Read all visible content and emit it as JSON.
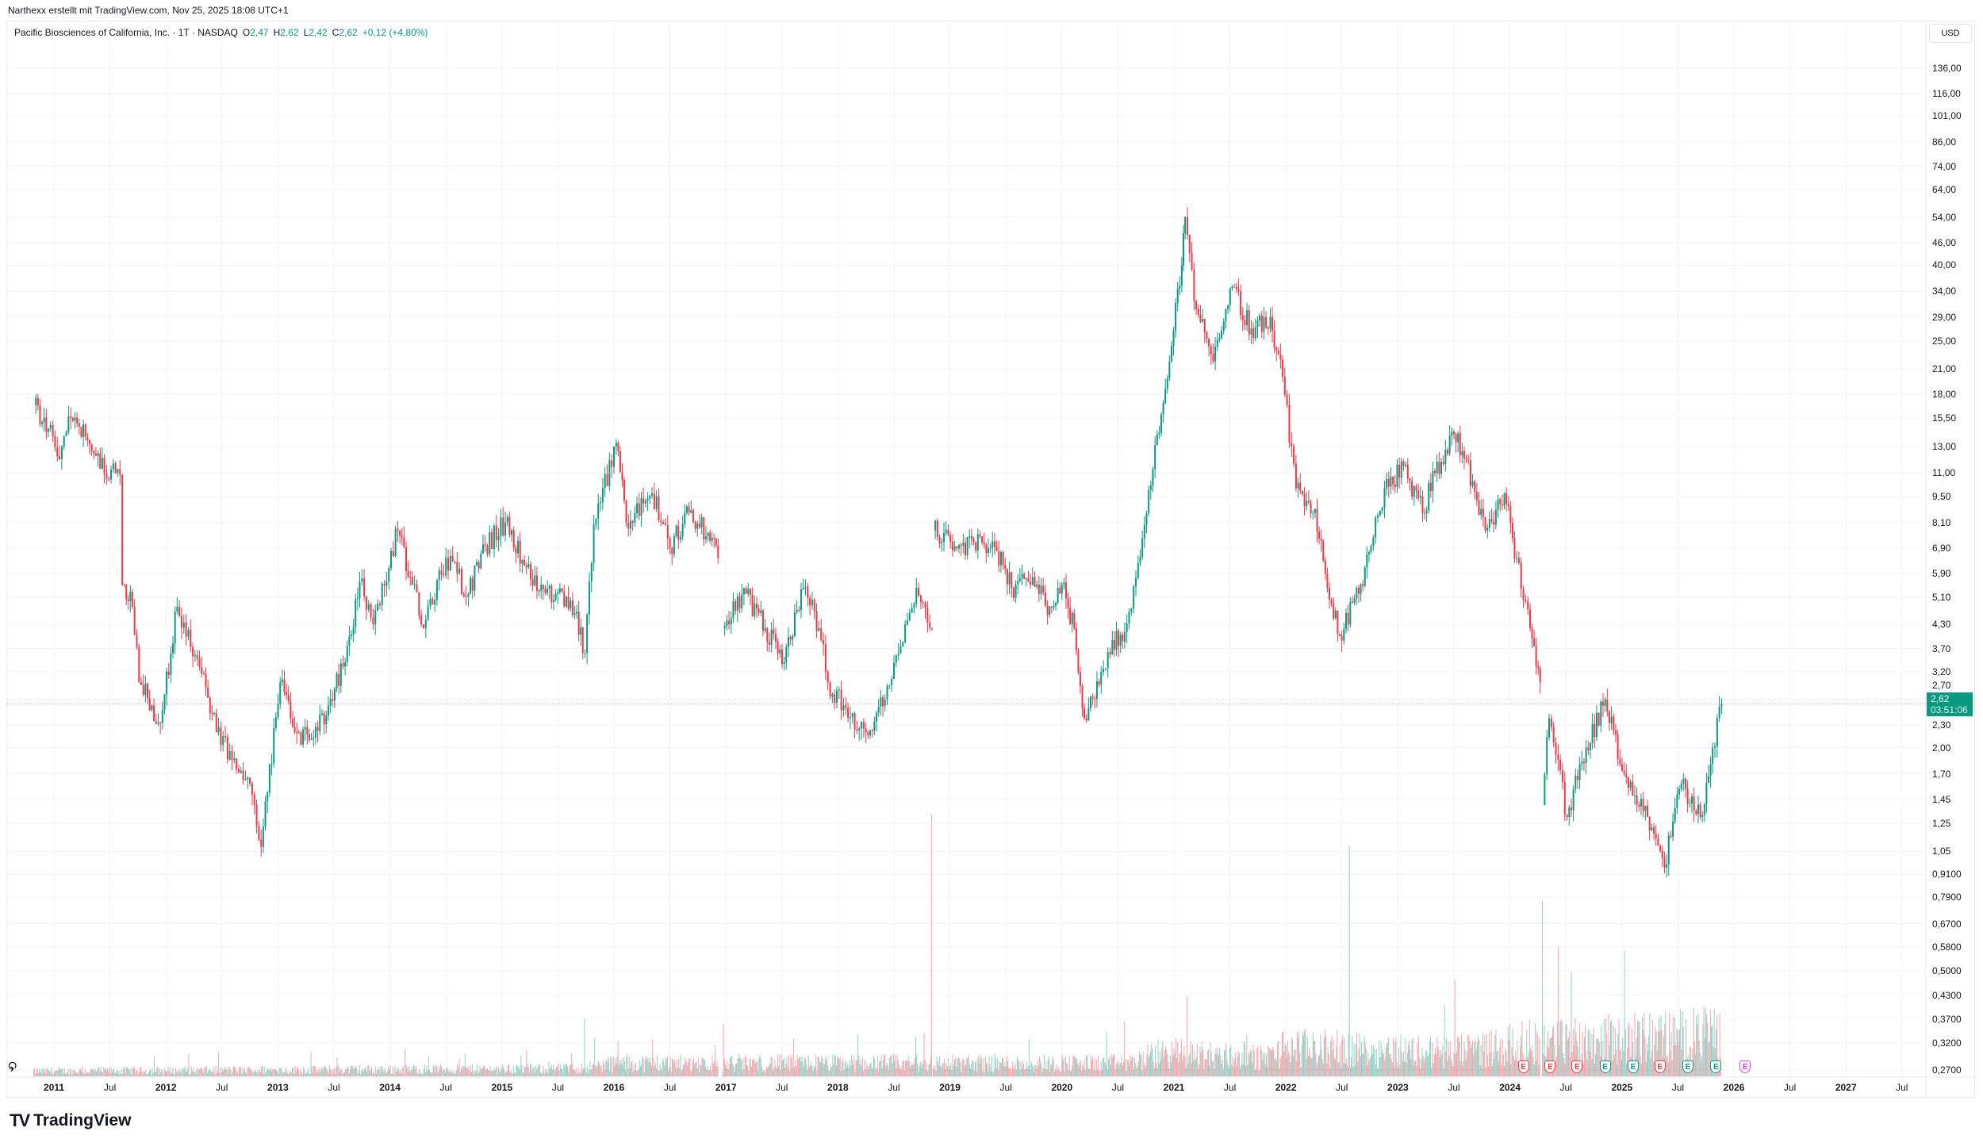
{
  "credit": "Narthexx erstellt mit TradingView.com, Nov 25, 2025 18:08 UTC+1",
  "legend": {
    "symbol": "Pacific Biosciences of California, Inc. · 1T · NASDAQ",
    "o_label": "O",
    "o": "2,47",
    "h_label": "H",
    "h": "2,62",
    "l_label": "L",
    "l": "2,42",
    "c_label": "C",
    "c": "2,62",
    "change": "+0,12 (+4,80%)"
  },
  "currency_button": "USD",
  "last_price": {
    "value": "2,62",
    "countdown": "03:51:06",
    "price": 2.62
  },
  "logo_text": "TradingView",
  "colors": {
    "up": "#089981",
    "down": "#f23645",
    "price_line": "#f23645",
    "forecast_earnings": "#e040fb"
  },
  "earnings_markers": [
    {
      "t": 2024.12,
      "label": "E",
      "color": "#f23645"
    },
    {
      "t": 2024.36,
      "label": "E",
      "color": "#f23645"
    },
    {
      "t": 2024.6,
      "label": "E",
      "color": "#f23645"
    },
    {
      "t": 2024.85,
      "label": "E",
      "color": "#089981"
    },
    {
      "t": 2025.1,
      "label": "E",
      "color": "#089981"
    },
    {
      "t": 2025.34,
      "label": "E",
      "color": "#f23645"
    },
    {
      "t": 2025.59,
      "label": "E",
      "color": "#089981"
    },
    {
      "t": 2025.84,
      "label": "E",
      "color": "#089981"
    },
    {
      "t": 2026.1,
      "label": "E",
      "color": "#e040fb"
    }
  ],
  "chart_data": {
    "type": "candlestick",
    "title": "Pacific Biosciences of California, Inc. · 1T · NASDAQ",
    "y_scale": "log",
    "ylim": [
      0.27,
      136
    ],
    "xlim": [
      2010.75,
      2027.75
    ],
    "y_ticks": [
      "136,00",
      "116,00",
      "101,00",
      "86,00",
      "74,00",
      "64,00",
      "54,00",
      "46,00",
      "40,00",
      "34,00",
      "29,00",
      "25,00",
      "21,00",
      "18,00",
      "15,50",
      "13,00",
      "11,00",
      "9,50",
      "8,10",
      "6,90",
      "5,90",
      "5,10",
      "4,30",
      "3,70",
      "3,20",
      "2,70",
      "2,30",
      "2,00",
      "1,70",
      "1,45",
      "1,25",
      "1,05",
      "0,9100",
      "0,7900",
      "0,6700",
      "0,5800",
      "0,5000",
      "0,4300",
      "0,3700",
      "0,3200",
      "0,2700"
    ],
    "x_ticks": [
      {
        "t": 2011,
        "label": "2011",
        "year": true
      },
      {
        "t": 2011.5,
        "label": "Jul"
      },
      {
        "t": 2012,
        "label": "2012",
        "year": true
      },
      {
        "t": 2012.5,
        "label": "Jul"
      },
      {
        "t": 2013,
        "label": "2013",
        "year": true
      },
      {
        "t": 2013.5,
        "label": "Jul"
      },
      {
        "t": 2014,
        "label": "2014",
        "year": true
      },
      {
        "t": 2014.5,
        "label": "Jul"
      },
      {
        "t": 2015,
        "label": "2015",
        "year": true
      },
      {
        "t": 2015.5,
        "label": "Jul"
      },
      {
        "t": 2016,
        "label": "2016",
        "year": true
      },
      {
        "t": 2016.5,
        "label": "Jul"
      },
      {
        "t": 2017,
        "label": "2017",
        "year": true
      },
      {
        "t": 2017.5,
        "label": "Jul"
      },
      {
        "t": 2018,
        "label": "2018",
        "year": true
      },
      {
        "t": 2018.5,
        "label": "Jul"
      },
      {
        "t": 2019,
        "label": "2019",
        "year": true
      },
      {
        "t": 2019.5,
        "label": "Jul"
      },
      {
        "t": 2020,
        "label": "2020",
        "year": true
      },
      {
        "t": 2020.5,
        "label": "Jul"
      },
      {
        "t": 2021,
        "label": "2021",
        "year": true
      },
      {
        "t": 2021.5,
        "label": "Jul"
      },
      {
        "t": 2022,
        "label": "2022",
        "year": true
      },
      {
        "t": 2022.5,
        "label": "Jul"
      },
      {
        "t": 2023,
        "label": "2023",
        "year": true
      },
      {
        "t": 2023.5,
        "label": "Jul"
      },
      {
        "t": 2024,
        "label": "2024",
        "year": true
      },
      {
        "t": 2024.5,
        "label": "Jul"
      },
      {
        "t": 2025,
        "label": "2025",
        "year": true
      },
      {
        "t": 2025.5,
        "label": "Jul"
      },
      {
        "t": 2026,
        "label": "2026",
        "year": true
      },
      {
        "t": 2026.5,
        "label": "Jul"
      },
      {
        "t": 2027,
        "label": "2027",
        "year": true
      },
      {
        "t": 2027.5,
        "label": "Jul"
      }
    ],
    "price_segments": [
      [
        [
          2010.82,
          16.8
        ],
        [
          2010.95,
          14.5
        ],
        [
          2011.05,
          12.0
        ],
        [
          2011.15,
          15.5
        ],
        [
          2011.3,
          13.5
        ],
        [
          2011.45,
          11.0
        ],
        [
          2011.59,
          10.9
        ],
        [
          2011.61,
          5.5
        ],
        [
          2011.7,
          4.8
        ],
        [
          2011.76,
          3.0
        ],
        [
          2011.95,
          2.33
        ],
        [
          2012.1,
          4.8
        ],
        [
          2012.3,
          3.3
        ],
        [
          2012.45,
          2.2
        ],
        [
          2012.61,
          1.87
        ],
        [
          2012.75,
          1.6
        ],
        [
          2012.85,
          1.08
        ],
        [
          2013.02,
          3.0
        ],
        [
          2013.15,
          2.2
        ],
        [
          2013.28,
          2.1
        ],
        [
          2013.45,
          2.6
        ],
        [
          2013.6,
          3.4
        ],
        [
          2013.73,
          5.6
        ],
        [
          2013.85,
          4.3
        ],
        [
          2014.07,
          7.7
        ],
        [
          2014.2,
          5.5
        ],
        [
          2014.3,
          4.2
        ],
        [
          2014.5,
          6.5
        ],
        [
          2014.7,
          5.2
        ],
        [
          2014.85,
          7.0
        ],
        [
          2015.03,
          8.1
        ],
        [
          2015.2,
          6.2
        ],
        [
          2015.35,
          5.5
        ],
        [
          2015.48,
          5.2
        ],
        [
          2015.65,
          4.6
        ],
        [
          2015.74,
          3.6
        ],
        [
          2015.82,
          8.0
        ],
        [
          2016.02,
          13.3
        ],
        [
          2016.11,
          8.1
        ],
        [
          2016.34,
          9.7
        ],
        [
          2016.5,
          6.9
        ],
        [
          2016.67,
          8.6
        ],
        [
          2016.84,
          7.6
        ],
        [
          2016.93,
          6.5
        ]
      ],
      [
        [
          2016.97,
          4.2
        ],
        [
          2017.18,
          5.2
        ],
        [
          2017.35,
          4.2
        ],
        [
          2017.52,
          3.4
        ],
        [
          2017.69,
          5.4
        ],
        [
          2017.83,
          4.2
        ],
        [
          2017.91,
          3.0
        ],
        [
          2018.05,
          2.6
        ],
        [
          2018.25,
          2.2
        ],
        [
          2018.42,
          2.7
        ],
        [
          2018.6,
          4.3
        ],
        [
          2018.7,
          5.4
        ],
        [
          2018.84,
          4.2
        ]
      ],
      [
        [
          2018.85,
          7.7
        ],
        [
          2019.1,
          7.0
        ],
        [
          2019.38,
          7.2
        ],
        [
          2019.55,
          5.4
        ],
        [
          2019.7,
          5.6
        ],
        [
          2019.89,
          4.8
        ],
        [
          2020.0,
          5.5
        ],
        [
          2020.11,
          4.2
        ],
        [
          2020.2,
          2.4
        ],
        [
          2020.35,
          3.2
        ],
        [
          2020.45,
          3.9
        ],
        [
          2020.56,
          4.1
        ],
        [
          2020.68,
          6.3
        ],
        [
          2020.85,
          14.0
        ],
        [
          2020.96,
          22.0
        ],
        [
          2021.07,
          40.0
        ],
        [
          2021.1,
          54.0
        ],
        [
          2021.18,
          32.0
        ],
        [
          2021.35,
          22.0
        ],
        [
          2021.52,
          35.0
        ],
        [
          2021.69,
          27.0
        ],
        [
          2021.86,
          29.0
        ],
        [
          2021.97,
          20.0
        ],
        [
          2022.09,
          10.0
        ],
        [
          2022.26,
          8.8
        ],
        [
          2022.37,
          5.4
        ],
        [
          2022.48,
          4.0
        ],
        [
          2022.65,
          5.2
        ],
        [
          2022.76,
          7.0
        ],
        [
          2022.88,
          10.0
        ],
        [
          2023.05,
          11.5
        ],
        [
          2023.22,
          8.6
        ],
        [
          2023.33,
          11.0
        ],
        [
          2023.5,
          14.0
        ],
        [
          2023.61,
          12.0
        ],
        [
          2023.78,
          7.7
        ],
        [
          2023.95,
          9.7
        ],
        [
          2024.06,
          6.5
        ],
        [
          2024.18,
          4.2
        ],
        [
          2024.27,
          3.0
        ]
      ],
      [
        [
          2024.29,
          1.4
        ],
        [
          2024.35,
          2.4
        ],
        [
          2024.51,
          1.3
        ],
        [
          2024.68,
          2.0
        ],
        [
          2024.85,
          2.7
        ],
        [
          2025.02,
          1.7
        ],
        [
          2025.19,
          1.35
        ],
        [
          2025.38,
          0.95
        ],
        [
          2025.53,
          1.6
        ],
        [
          2025.7,
          1.3
        ],
        [
          2025.81,
          2.0
        ],
        [
          2025.89,
          2.62
        ]
      ]
    ],
    "volume_relative": {
      "baseline": [
        [
          2010.8,
          0.02
        ],
        [
          2015.7,
          0.03
        ],
        [
          2016.0,
          0.05
        ],
        [
          2020.6,
          0.05
        ],
        [
          2020.9,
          0.09
        ],
        [
          2021.8,
          0.07
        ],
        [
          2022.0,
          0.11
        ],
        [
          2023.5,
          0.09
        ],
        [
          2024.2,
          0.13
        ],
        [
          2025.9,
          0.16
        ]
      ],
      "spikes": [
        [
          2015.74,
          0.22
        ],
        [
          2016.9,
          0.12
        ],
        [
          2018.84,
          1.0
        ],
        [
          2020.56,
          0.21
        ],
        [
          2022.57,
          0.88
        ],
        [
          2024.29,
          0.67
        ],
        [
          2024.55,
          0.4
        ],
        [
          2025.02,
          0.48
        ]
      ]
    }
  }
}
